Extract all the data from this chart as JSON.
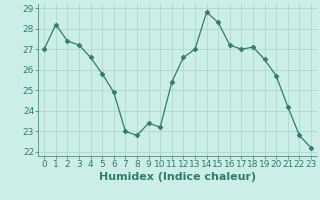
{
  "x": [
    0,
    1,
    2,
    3,
    4,
    5,
    6,
    7,
    8,
    9,
    10,
    11,
    12,
    13,
    14,
    15,
    16,
    17,
    18,
    19,
    20,
    21,
    22,
    23
  ],
  "y": [
    27.0,
    28.2,
    27.4,
    27.2,
    26.6,
    25.8,
    24.9,
    23.0,
    22.8,
    23.4,
    23.2,
    25.4,
    26.6,
    27.0,
    28.8,
    28.3,
    27.2,
    27.0,
    27.1,
    26.5,
    25.7,
    24.2,
    22.8,
    22.2
  ],
  "line_color": "#2e7d6e",
  "marker": "D",
  "marker_size": 2.5,
  "bg_color": "#cceee8",
  "grid_color": "#aad4cc",
  "xlabel": "Humidex (Indice chaleur)",
  "ylim": [
    21.8,
    29.2
  ],
  "xlim": [
    -0.5,
    23.5
  ],
  "yticks": [
    22,
    23,
    24,
    25,
    26,
    27,
    28,
    29
  ],
  "xticks": [
    0,
    1,
    2,
    3,
    4,
    5,
    6,
    7,
    8,
    9,
    10,
    11,
    12,
    13,
    14,
    15,
    16,
    17,
    18,
    19,
    20,
    21,
    22,
    23
  ],
  "text_color": "#2e7d6e",
  "xlabel_fontsize": 8,
  "tick_fontsize": 6.5
}
